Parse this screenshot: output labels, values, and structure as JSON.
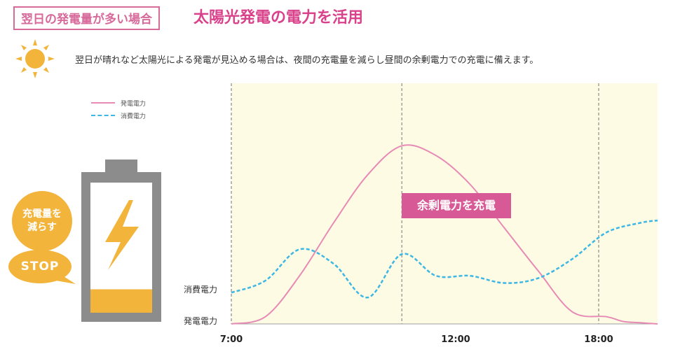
{
  "header": {
    "badge": "翌日の発電量が多い場合",
    "title": "太陽光発電の電力を活用"
  },
  "description": "翌日が晴れなど太陽光による発電が見込める場合は、夜間の充電量を減らし昼間の余剰電力での充電に備えます。",
  "icons": {
    "sun": "sun-icon",
    "battery": "battery-icon",
    "bolt": "lightning-bolt-icon"
  },
  "battery": {
    "charge_level": 0.18,
    "bubble_label": "充電量を\n減らす",
    "stop_label": "STOP"
  },
  "colors": {
    "generation": "#e78ab5",
    "consumption": "#3db7e4",
    "chart_bg": "#fdfbe3",
    "accent": "#d9418b",
    "battery_fill": "#f2b43a"
  },
  "chart_data": {
    "type": "line",
    "legend": [
      {
        "name": "発電電力",
        "style": "solid",
        "color": "#e78ab5"
      },
      {
        "name": "消費電力",
        "style": "dashed",
        "color": "#3db7e4"
      }
    ],
    "x_ticks": [
      "7:00",
      "12:00",
      "18:00"
    ],
    "y_labels": [
      "消費電力",
      "発電電力"
    ],
    "annotation": "余剰電力を充電",
    "series": [
      {
        "name": "発電電力",
        "x": [
          7,
          8,
          9,
          10,
          11,
          12,
          13,
          14,
          15,
          16,
          17,
          18,
          18.5,
          19,
          19.5
        ],
        "y": [
          0,
          0.03,
          0.2,
          0.42,
          0.62,
          0.74,
          0.7,
          0.58,
          0.4,
          0.22,
          0.05,
          0.03,
          0.01,
          0.005,
          0
        ]
      },
      {
        "name": "消費電力",
        "x": [
          7,
          8,
          9,
          10,
          11,
          12,
          13,
          14,
          15,
          16,
          17,
          18,
          19,
          19.5
        ],
        "y": [
          0.13,
          0.18,
          0.31,
          0.25,
          0.11,
          0.29,
          0.2,
          0.2,
          0.17,
          0.19,
          0.27,
          0.38,
          0.42,
          0.43
        ]
      }
    ],
    "xlim": [
      7,
      19.5
    ],
    "ylim": [
      0,
      1
    ],
    "grid": "vertical dashed at 7:00, 12:00, 18:00"
  }
}
